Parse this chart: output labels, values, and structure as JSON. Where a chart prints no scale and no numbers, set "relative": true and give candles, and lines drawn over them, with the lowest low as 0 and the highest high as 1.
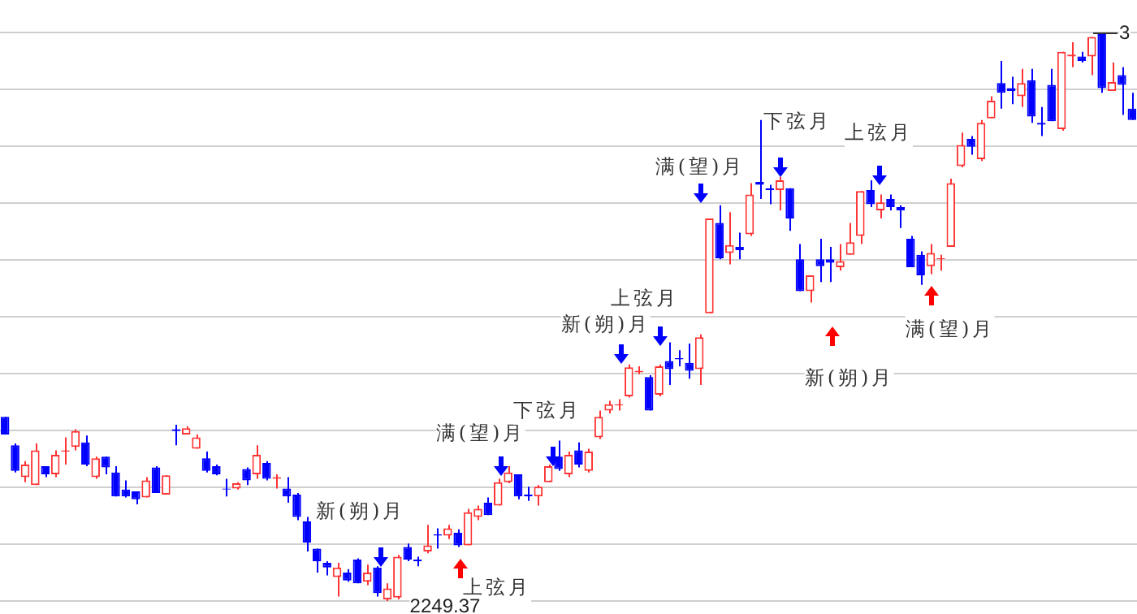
{
  "chart_data": {
    "type": "candlestick",
    "relative": true,
    "grid": "y",
    "categories": [
      null,
      null,
      null,
      null,
      null,
      null,
      null,
      null,
      null,
      null,
      null,
      null,
      null,
      null,
      null,
      null,
      null,
      null,
      null,
      null,
      null,
      null,
      null,
      null,
      null,
      null,
      null,
      null,
      null,
      null,
      null,
      null,
      null,
      null,
      null,
      null,
      null,
      null,
      null,
      null,
      null,
      null,
      null,
      null,
      null,
      null,
      null,
      null,
      null,
      null,
      null,
      null,
      null,
      null,
      null,
      null,
      null,
      null,
      null,
      null,
      null,
      null,
      null,
      null,
      null,
      null,
      null,
      null,
      null,
      null,
      null,
      null,
      null,
      null,
      null,
      null,
      null,
      null,
      null,
      null,
      null,
      null,
      null,
      null,
      null,
      null,
      null,
      null,
      null,
      null,
      null,
      null,
      null,
      null,
      null,
      null,
      null,
      null,
      null,
      null,
      null,
      null,
      null,
      null,
      null,
      null,
      null,
      null,
      null,
      null,
      null,
      null,
      null
    ],
    "ohlc": [
      [
        0.324,
        0.324,
        0.293,
        0.293
      ],
      [
        0.274,
        0.277,
        0.226,
        0.229
      ],
      [
        0.218,
        0.246,
        0.209,
        0.24
      ],
      [
        0.204,
        0.277,
        0.204,
        0.265
      ],
      [
        0.237,
        0.237,
        0.218,
        0.223
      ],
      [
        0.223,
        0.265,
        0.218,
        0.257
      ],
      [
        0.263,
        0.288,
        0.24,
        0.265
      ],
      [
        0.271,
        0.302,
        0.265,
        0.299
      ],
      [
        0.279,
        0.291,
        0.237,
        0.24
      ],
      [
        0.218,
        0.254,
        0.215,
        0.251
      ],
      [
        0.254,
        0.254,
        0.223,
        0.235
      ],
      [
        0.226,
        0.237,
        0.184,
        0.184
      ],
      [
        0.196,
        0.212,
        0.182,
        0.184
      ],
      [
        0.193,
        0.193,
        0.17,
        0.179
      ],
      [
        0.182,
        0.218,
        0.182,
        0.212
      ],
      [
        0.235,
        0.237,
        0.19,
        0.19
      ],
      [
        0.187,
        0.221,
        0.187,
        0.221
      ],
      [
        0.302,
        0.31,
        0.274,
        0.299
      ],
      [
        0.293,
        0.307,
        0.293,
        0.304
      ],
      [
        0.268,
        0.293,
        0.268,
        0.288
      ],
      [
        0.251,
        0.263,
        0.226,
        0.229
      ],
      [
        0.237,
        0.24,
        0.221,
        0.223
      ],
      [
        0.198,
        0.215,
        0.184,
        0.196
      ],
      [
        0.198,
        0.209,
        0.196,
        0.207
      ],
      [
        0.232,
        0.235,
        0.204,
        0.212
      ],
      [
        0.223,
        0.274,
        0.215,
        0.257
      ],
      [
        0.243,
        0.246,
        0.212,
        0.215
      ],
      [
        0.215,
        0.223,
        0.198,
        0.218
      ],
      [
        0.198,
        0.218,
        0.173,
        0.184
      ],
      [
        0.187,
        0.19,
        0.142,
        0.148
      ],
      [
        0.14,
        0.148,
        0.087,
        0.103
      ],
      [
        0.092,
        0.092,
        0.05,
        0.07
      ],
      [
        0.067,
        0.07,
        0.045,
        0.059
      ],
      [
        0.042,
        0.067,
        0.008,
        0.059
      ],
      [
        0.05,
        0.056,
        0.034,
        0.036
      ],
      [
        0.073,
        0.075,
        0.031,
        0.031
      ],
      [
        0.034,
        0.064,
        0.028,
        0.05
      ],
      [
        0.059,
        0.061,
        0.008,
        0.014
      ],
      [
        0.003,
        0.031,
        0,
        0.022
      ],
      [
        0.006,
        0.081,
        0.003,
        0.078
      ],
      [
        0.095,
        0.101,
        0.07,
        0.073
      ],
      [
        0.073,
        0.078,
        0.061,
        0.07
      ],
      [
        0.087,
        0.134,
        0.084,
        0.098
      ],
      [
        0.117,
        0.128,
        0.092,
        0.115
      ],
      [
        0.115,
        0.134,
        0.109,
        0.128
      ],
      [
        0.12,
        0.126,
        0.095,
        0.098
      ],
      [
        0.098,
        0.162,
        0.098,
        0.156
      ],
      [
        0.148,
        0.168,
        0.142,
        0.162
      ],
      [
        0.173,
        0.182,
        0.151,
        0.151
      ],
      [
        0.168,
        0.215,
        0.168,
        0.209
      ],
      [
        0.209,
        0.237,
        0.207,
        0.226
      ],
      [
        0.223,
        0.223,
        0.179,
        0.184
      ],
      [
        0.187,
        0.201,
        0.176,
        0.184
      ],
      [
        0.184,
        0.204,
        0.168,
        0.201
      ],
      [
        0.209,
        0.24,
        0.209,
        0.237
      ],
      [
        0.254,
        0.282,
        0.229,
        0.232
      ],
      [
        0.223,
        0.263,
        0.218,
        0.257
      ],
      [
        0.265,
        0.279,
        0.235,
        0.24
      ],
      [
        0.229,
        0.268,
        0.226,
        0.263
      ],
      [
        0.288,
        0.335,
        0.285,
        0.324
      ],
      [
        0.335,
        0.352,
        0.33,
        0.346
      ],
      [
        0.344,
        0.355,
        0.335,
        0.346
      ],
      [
        0.36,
        0.416,
        0.358,
        0.411
      ],
      [
        0.402,
        0.413,
        0.399,
        0.405
      ],
      [
        0.394,
        0.397,
        0.335,
        0.335
      ],
      [
        0.363,
        0.416,
        0.36,
        0.413
      ],
      [
        0.422,
        0.455,
        0.38,
        0.408
      ],
      [
        0.427,
        0.441,
        0.413,
        0.425
      ],
      [
        0.419,
        0.453,
        0.391,
        0.405
      ],
      [
        0.408,
        0.469,
        0.38,
        0.464
      ],
      [
        0.506,
        0.673,
        0.506,
        0.673
      ],
      [
        0.665,
        0.696,
        0.601,
        0.603
      ],
      [
        0.612,
        0.684,
        0.592,
        0.626
      ],
      [
        0.623,
        0.648,
        0.601,
        0.617
      ],
      [
        0.645,
        0.735,
        0.642,
        0.715
      ],
      [
        0.737,
        0.846,
        0.707,
        0.732
      ],
      [
        0.726,
        0.732,
        0.698,
        0.723
      ],
      [
        0.723,
        0.746,
        0.687,
        0.74
      ],
      [
        0.726,
        0.726,
        0.651,
        0.673
      ],
      [
        0.601,
        0.628,
        0.545,
        0.545
      ],
      [
        0.545,
        0.573,
        0.525,
        0.573
      ],
      [
        0.601,
        0.637,
        0.561,
        0.589
      ],
      [
        0.601,
        0.623,
        0.561,
        0.595
      ],
      [
        0.587,
        0.628,
        0.581,
        0.598
      ],
      [
        0.609,
        0.665,
        0.609,
        0.631
      ],
      [
        0.642,
        0.721,
        0.628,
        0.721
      ],
      [
        0.723,
        0.74,
        0.693,
        0.698
      ],
      [
        0.687,
        0.715,
        0.673,
        0.701
      ],
      [
        0.707,
        0.715,
        0.687,
        0.693
      ],
      [
        0.693,
        0.696,
        0.656,
        0.687
      ],
      [
        0.637,
        0.642,
        0.587,
        0.587
      ],
      [
        0.609,
        0.615,
        0.556,
        0.573
      ],
      [
        0.589,
        0.628,
        0.575,
        0.612
      ],
      [
        0.601,
        0.609,
        0.581,
        0.603
      ],
      [
        0.623,
        0.743,
        0.623,
        0.735
      ],
      [
        0.765,
        0.824,
        0.763,
        0.802
      ],
      [
        0.813,
        0.818,
        0.785,
        0.799
      ],
      [
        0.777,
        0.846,
        0.774,
        0.841
      ],
      [
        0.849,
        0.888,
        0.849,
        0.88
      ],
      [
        0.911,
        0.95,
        0.866,
        0.894
      ],
      [
        0.902,
        0.922,
        0.874,
        0.897
      ],
      [
        0.888,
        0.936,
        0.869,
        0.911
      ],
      [
        0.916,
        0.936,
        0.841,
        0.852
      ],
      [
        0.841,
        0.869,
        0.818,
        0.838
      ],
      [
        0.908,
        0.936,
        0.844,
        0.844
      ],
      [
        0.83,
        0.966,
        0.827,
        0.966
      ],
      [
        0.958,
        0.983,
        0.939,
        0.961
      ],
      [
        0.958,
        0.966,
        0.947,
        0.95
      ],
      [
        0.958,
        0.992,
        0.925,
        0.992
      ],
      [
        0.997,
        1,
        0.894,
        0.902
      ],
      [
        0.897,
        0.947,
        0.897,
        0.913
      ],
      [
        0.925,
        0.939,
        0.855,
        0.908
      ],
      [
        0.866,
        0.894,
        0.846,
        0.846
      ]
    ],
    "colors": [
      "#0000ff",
      "#0000ff",
      "#ff3333",
      "#ff3333",
      "#0000ff",
      "#ff3333",
      "#ff3333",
      "#ff3333",
      "#0000ff",
      "#ff3333",
      "#0000ff",
      "#0000ff",
      "#0000ff",
      "#0000ff",
      "#ff3333",
      "#0000ff",
      "#ff3333",
      "#0000ff",
      "#ff3333",
      "#ff3333",
      "#0000ff",
      "#0000ff",
      "#0000ff",
      "#ff3333",
      "#0000ff",
      "#ff3333",
      "#0000ff",
      "#ff3333",
      "#0000ff",
      "#0000ff",
      "#0000ff",
      "#0000ff",
      "#0000ff",
      "#ff3333",
      "#0000ff",
      "#0000ff",
      "#ff3333",
      "#0000ff",
      "#ff3333",
      "#ff3333",
      "#0000ff",
      "#0000ff",
      "#ff3333",
      "#0000ff",
      "#ff3333",
      "#0000ff",
      "#ff3333",
      "#ff3333",
      "#0000ff",
      "#ff3333",
      "#ff3333",
      "#0000ff",
      "#0000ff",
      "#ff3333",
      "#ff3333",
      "#0000ff",
      "#ff3333",
      "#0000ff",
      "#ff3333",
      "#ff3333",
      "#ff3333",
      "#ff3333",
      "#ff3333",
      "#ff3333",
      "#0000ff",
      "#ff3333",
      "#0000ff",
      "#0000ff",
      "#0000ff",
      "#ff3333",
      "#ff3333",
      "#0000ff",
      "#ff3333",
      "#0000ff",
      "#ff3333",
      "#0000ff",
      "#0000ff",
      "#ff3333",
      "#0000ff",
      "#0000ff",
      "#ff3333",
      "#0000ff",
      "#0000ff",
      "#ff3333",
      "#ff3333",
      "#ff3333",
      "#0000ff",
      "#ff3333",
      "#0000ff",
      "#0000ff",
      "#0000ff",
      "#0000ff",
      "#ff3333",
      "#ff3333",
      "#ff3333",
      "#ff3333",
      "#0000ff",
      "#ff3333",
      "#ff3333",
      "#0000ff",
      "#0000ff",
      "#ff3333",
      "#0000ff",
      "#0000ff",
      "#0000ff",
      "#ff3333",
      "#ff3333",
      "#0000ff",
      "#ff3333",
      "#0000ff",
      "#ff3333",
      "#0000ff",
      "#0000ff"
    ],
    "annotations": [
      "新(朔)月",
      "满(望)月",
      "下弦月",
      "上弦月",
      "新(朔)月",
      "上弦月",
      "满(望)月",
      "下弦月",
      "新(朔)月",
      "上弦月",
      "满(望)月",
      "2249.37",
      "3"
    ]
  }
}
